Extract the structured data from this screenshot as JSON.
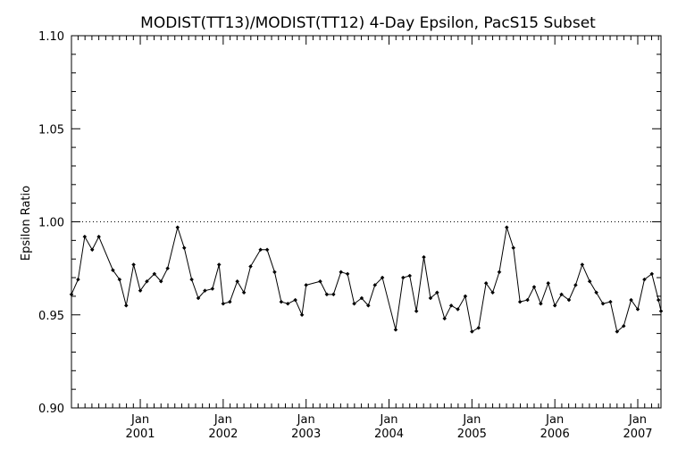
{
  "chart_data": {
    "type": "line",
    "title": "MODIST(TT13)/MODIST(TT12) 4-Day Epsilon, PacS15 Subset",
    "xlabel": "",
    "ylabel": "Epsilon Ratio",
    "ylim": [
      0.9,
      1.1
    ],
    "y_ticks": [
      "0.90",
      "0.95",
      "1.00",
      "1.05",
      "1.10"
    ],
    "y_tick_values": [
      0.9,
      0.95,
      1.0,
      1.05,
      1.1
    ],
    "x_range": [
      2000.17,
      2007.28
    ],
    "x_ticks": [
      {
        "month": "Jan",
        "year": "2001",
        "value": 2001.0
      },
      {
        "month": "Jan",
        "year": "2002",
        "value": 2002.0
      },
      {
        "month": "Jan",
        "year": "2003",
        "value": 2003.0
      },
      {
        "month": "Jan",
        "year": "2004",
        "value": 2004.0
      },
      {
        "month": "Jan",
        "year": "2005",
        "value": 2005.0
      },
      {
        "month": "Jan",
        "year": "2006",
        "value": 2006.0
      },
      {
        "month": "Jan",
        "year": "2007",
        "value": 2007.0
      }
    ],
    "reference_line": 1.0,
    "grid": false,
    "series": [
      {
        "x": [
          2000.17,
          2000.25,
          2000.33,
          2000.42,
          2000.5,
          2000.67,
          2000.75,
          2000.83,
          2000.92,
          2001.0,
          2001.08,
          2001.17,
          2001.25,
          2001.33,
          2001.45,
          2001.53,
          2001.62,
          2001.7,
          2001.78,
          2001.87,
          2001.95,
          2002.0,
          2002.08,
          2002.17,
          2002.25,
          2002.33,
          2002.45,
          2002.53,
          2002.62,
          2002.7,
          2002.78,
          2002.87,
          2002.95,
          2003.0,
          2003.17,
          2003.25,
          2003.33,
          2003.42,
          2003.5,
          2003.58,
          2003.67,
          2003.75,
          2003.83,
          2003.92,
          2004.08,
          2004.17,
          2004.25,
          2004.33,
          2004.42,
          2004.5,
          2004.58,
          2004.67,
          2004.75,
          2004.83,
          2004.92,
          2005.0,
          2005.08,
          2005.17,
          2005.25,
          2005.33,
          2005.42,
          2005.5,
          2005.58,
          2005.67,
          2005.75,
          2005.83,
          2005.92,
          2006.0,
          2006.08,
          2006.17,
          2006.25,
          2006.33,
          2006.42,
          2006.5,
          2006.58,
          2006.67,
          2006.75,
          2006.83,
          2006.92,
          2007.0,
          2007.08,
          2007.17,
          2007.25,
          2007.28
        ],
        "values": [
          0.961,
          0.969,
          0.992,
          0.985,
          0.992,
          0.974,
          0.969,
          0.955,
          0.977,
          0.963,
          0.968,
          0.972,
          0.968,
          0.975,
          0.997,
          0.986,
          0.969,
          0.959,
          0.963,
          0.964,
          0.977,
          0.956,
          0.957,
          0.968,
          0.962,
          0.976,
          0.985,
          0.985,
          0.973,
          0.957,
          0.956,
          0.958,
          0.95,
          0.966,
          0.968,
          0.961,
          0.961,
          0.973,
          0.972,
          0.956,
          0.959,
          0.955,
          0.966,
          0.97,
          0.942,
          0.97,
          0.971,
          0.952,
          0.981,
          0.959,
          0.962,
          0.948,
          0.955,
          0.953,
          0.96,
          0.941,
          0.943,
          0.967,
          0.962,
          0.973,
          0.997,
          0.986,
          0.957,
          0.958,
          0.965,
          0.956,
          0.967,
          0.955,
          0.961,
          0.958,
          0.966,
          0.977,
          0.968,
          0.962,
          0.956,
          0.957,
          0.941,
          0.944,
          0.958,
          0.953,
          0.969,
          0.972,
          0.958,
          0.952
        ]
      }
    ]
  }
}
